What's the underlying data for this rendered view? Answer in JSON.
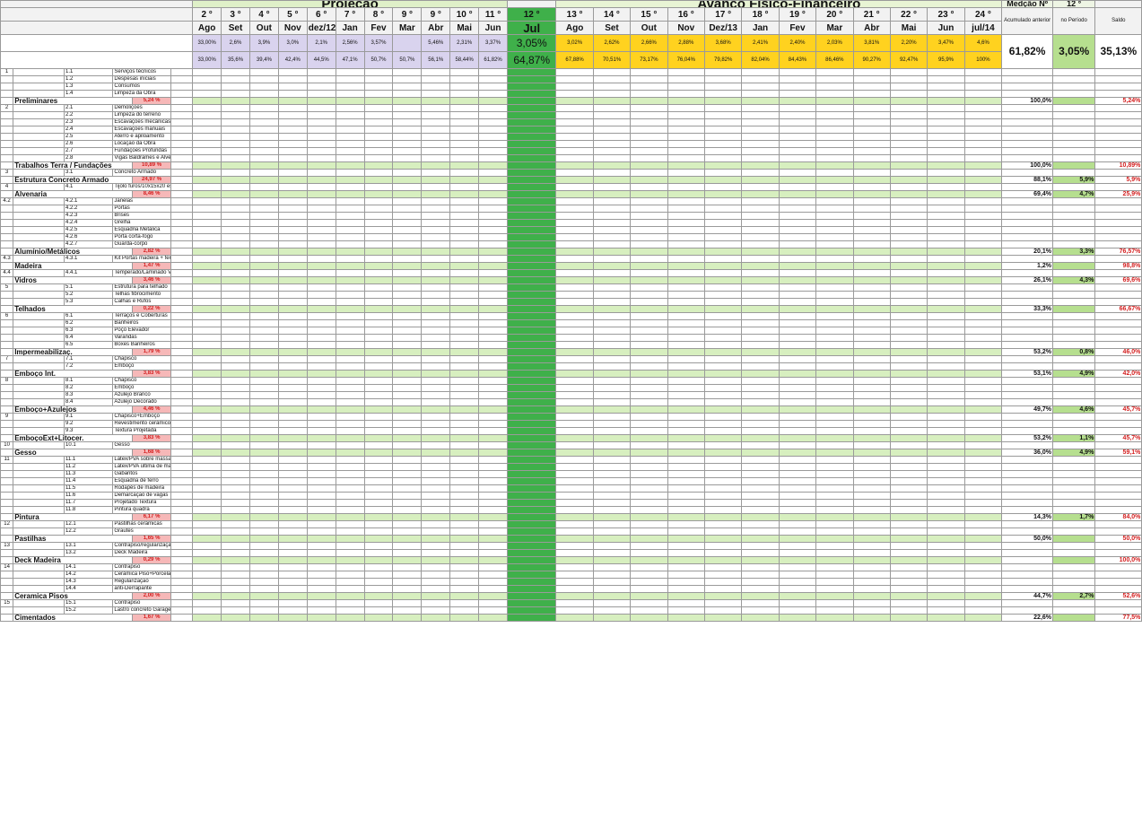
{
  "header": {
    "title_projecao": "Projeção",
    "title_avanco": "Avanço Físico-Financeiro",
    "medicao_label": "Medção Nº",
    "medicao_num": "12 °",
    "col_acumulado": "Acumulado anterior",
    "col_periodo": "no Período",
    "col_saldo": "Saldo",
    "months": [
      {
        "n": "2 °",
        "m": "Ago",
        "a": "33,00%",
        "b": "33,00%"
      },
      {
        "n": "3 °",
        "m": "Set",
        "a": "2,6%",
        "b": "35,6%"
      },
      {
        "n": "4 °",
        "m": "Out",
        "a": "3,9%",
        "b": "39,4%"
      },
      {
        "n": "5 °",
        "m": "Nov",
        "a": "3,0%",
        "b": "42,4%"
      },
      {
        "n": "6 °",
        "m": "dez/12",
        "a": "2,1%",
        "b": "44,5%"
      },
      {
        "n": "7 °",
        "m": "Jan",
        "a": "2,56%",
        "b": "47,1%"
      },
      {
        "n": "8 °",
        "m": "Fev",
        "a": "3,57%",
        "b": "50,7%"
      },
      {
        "n": "9 °",
        "m": "Mar",
        "a": "",
        "b": "50,7%"
      },
      {
        "n": "9 °",
        "m": "Abr",
        "a": "5,46%",
        "b": "56,1%"
      },
      {
        "n": "10 °",
        "m": "Mai",
        "a": "2,31%",
        "b": "58,44%"
      },
      {
        "n": "11 °",
        "m": "Jun",
        "a": "3,37%",
        "b": "61,82%"
      },
      {
        "n": "12 °",
        "m": "Jul",
        "a": "3,05%",
        "b": "64,87%"
      },
      {
        "n": "13 °",
        "m": "Ago",
        "a": "3,02%",
        "b": "67,88%"
      },
      {
        "n": "14 °",
        "m": "Set",
        "a": "2,62%",
        "b": "70,51%"
      },
      {
        "n": "15 °",
        "m": "Out",
        "a": "2,66%",
        "b": "73,17%"
      },
      {
        "n": "16 °",
        "m": "Nov",
        "a": "2,88%",
        "b": "76,04%"
      },
      {
        "n": "17 °",
        "m": "Dez/13",
        "a": "3,68%",
        "b": "79,82%"
      },
      {
        "n": "18 °",
        "m": "Jan",
        "a": "2,41%",
        "b": "82,04%"
      },
      {
        "n": "19 °",
        "m": "Fev",
        "a": "2,40%",
        "b": "84,43%"
      },
      {
        "n": "20 °",
        "m": "Mar",
        "a": "2,03%",
        "b": "86,46%"
      },
      {
        "n": "21 °",
        "m": "Abr",
        "a": "3,81%",
        "b": "90,27%"
      },
      {
        "n": "22 °",
        "m": "Mai",
        "a": "2,20%",
        "b": "92,47%"
      },
      {
        "n": "23 °",
        "m": "Jun",
        "a": "3,47%",
        "b": "95,9%"
      },
      {
        "n": "24 °",
        "m": "jul/14",
        "a": "4,6%",
        "b": "100%"
      }
    ],
    "summary": {
      "acumulado": "61,82%",
      "periodo": "3,05%",
      "saldo": "35,13%"
    }
  },
  "sections": [
    {
      "id": "1",
      "name": "Preliminares",
      "pct": "5,24 %",
      "items": [
        "Serviços técnicos",
        "Despesas iniciais",
        "Consumos",
        "Limpeza da Obra"
      ],
      "acc": "100,0%",
      "per": "",
      "saldo": "5,24%"
    },
    {
      "id": "2",
      "name": "Trabalhos Terra / Fundações",
      "pct": "10,89 %",
      "items": [
        "Demolições",
        "Limpeza do terreno",
        "Escavações mecânicas",
        "Escavações manuais",
        "Aterro e apiloamento",
        "Locação da Obra",
        "Fundações Profundas",
        "Vigas Baldrames e Alvenarias"
      ],
      "acc": "100,0%",
      "per": "",
      "saldo": "10,89%"
    },
    {
      "id": "3",
      "name": "Estrutura Concreto Armado",
      "pct": "24,97 %",
      "items": [
        "Concreto Armado"
      ],
      "acc": "88,1%",
      "per": "5,9%",
      "saldo": "5,9%"
    },
    {
      "id": "4",
      "name": "Alvenaria",
      "pct": "8,46 %",
      "items": [
        "Tijolo furos/10x15x20 esp. 15cm"
      ],
      "acc": "69,4%",
      "per": "4,7%",
      "saldo": "25,9%"
    },
    {
      "id": "4.2",
      "name": "Alumínio/Metálicos",
      "pct": "2,82 %",
      "items": [
        "Janelas",
        "Portas",
        "Brises",
        "Grelha",
        "Esquadria Metálica",
        "Porta corta-fogo",
        "Guarda-corpo"
      ],
      "acc": "20,1%",
      "per": "3,3%",
      "saldo": "76,57%"
    },
    {
      "id": "4.3",
      "name": "Madeira",
      "pct": "1,47 %",
      "items": [
        "Kit Portas madeira + ferragem"
      ],
      "acc": "1,2%",
      "per": "",
      "saldo": "98,8%"
    },
    {
      "id": "4.4",
      "name": "Vidros",
      "pct": "3,46 %",
      "items": [
        "Temperado/Laminado VERDE"
      ],
      "acc": "26,1%",
      "per": "4,3%",
      "saldo": "69,6%"
    },
    {
      "id": "5",
      "name": "Telhados",
      "pct": "0,22 %",
      "items": [
        "Estrutura para telhado",
        "Telhas fibrocimento",
        "Calhas e Rufos"
      ],
      "acc": "33,3%",
      "per": "",
      "saldo": "66,67%"
    },
    {
      "id": "6",
      "name": "Impermeabilizaç.",
      "pct": "1,79 %",
      "items": [
        "Terraços e Coberturas",
        "Banheiros",
        "Poço Elevador",
        "Varandas",
        "Boxes Banheiros"
      ],
      "acc": "53,2%",
      "per": "0,8%",
      "saldo": "46,0%"
    },
    {
      "id": "7",
      "name": "Emboço Int.",
      "pct": "3,83 %",
      "items": [
        "Chapisco",
        "Emboço"
      ],
      "acc": "53,1%",
      "per": "4,9%",
      "saldo": "42,0%"
    },
    {
      "id": "8",
      "name": "Emboço+Azulejos",
      "pct": "4,46 %",
      "items": [
        "Chapisco",
        "Emboço",
        "Azulejo Branco",
        "Azulejo Decorado"
      ],
      "acc": "49,7%",
      "per": "4,6%",
      "saldo": "45,7%"
    },
    {
      "id": "9",
      "name": "EmboçoExt+Litocer.",
      "pct": "3,83 %",
      "items": [
        "Chapisco+Emboço",
        "Revestimento cerâmico Tijolinho",
        "Textura Projetada"
      ],
      "acc": "53,2%",
      "per": "1,1%",
      "saldo": "45,7%"
    },
    {
      "id": "10",
      "name": "Gesso",
      "pct": "1,68 %",
      "items": [
        "Gesso"
      ],
      "acc": "36,0%",
      "per": "4,9%",
      "saldo": "59,1%"
    },
    {
      "id": "11",
      "name": "Pintura",
      "pct": "6,17 %",
      "items": [
        "Látex/PVA sobre massa corrida",
        "Látex/PVA última de mão",
        "Gabaritos",
        "Esquadria de ferro",
        "Rodapés de madeira",
        "Demarcação de vagas",
        "Projetado Textura",
        "Pintura quadra"
      ],
      "acc": "14,3%",
      "per": "1,7%",
      "saldo": "84,0%"
    },
    {
      "id": "12",
      "name": "Pastilhas",
      "pct": "1,65 %",
      "items": [
        "Pastilhas cerâmicas",
        "Grautes"
      ],
      "acc": "50,0%",
      "per": "",
      "saldo": "50,0%"
    },
    {
      "id": "13",
      "name": "Deck Madeira",
      "pct": "0,29 %",
      "items": [
        "Contrapiso/regularização",
        "Deck Madeira"
      ],
      "acc": "",
      "per": "",
      "saldo": "100,0%"
    },
    {
      "id": "14",
      "name": "Ceramica Pisos",
      "pct": "2,00 %",
      "items": [
        "Contrapiso",
        "Cerâmica Piso+Porcelanato",
        "Regularização",
        "anti-Derrapante"
      ],
      "acc": "44,7%",
      "per": "2,7%",
      "saldo": "52,6%"
    },
    {
      "id": "15",
      "name": "Cimentados",
      "pct": "1,67 %",
      "items": [
        "Contrapiso",
        "Lastro concreto Garagens"
      ],
      "acc": "22,6%",
      "per": "",
      "saldo": "77,5%"
    }
  ],
  "colors": {
    "header_green": "#dff0c8",
    "current_month": "#3fb04a",
    "yellow": "#ffd21f",
    "lilac": "#d9d3ee",
    "pink": "#f6b8b8"
  }
}
